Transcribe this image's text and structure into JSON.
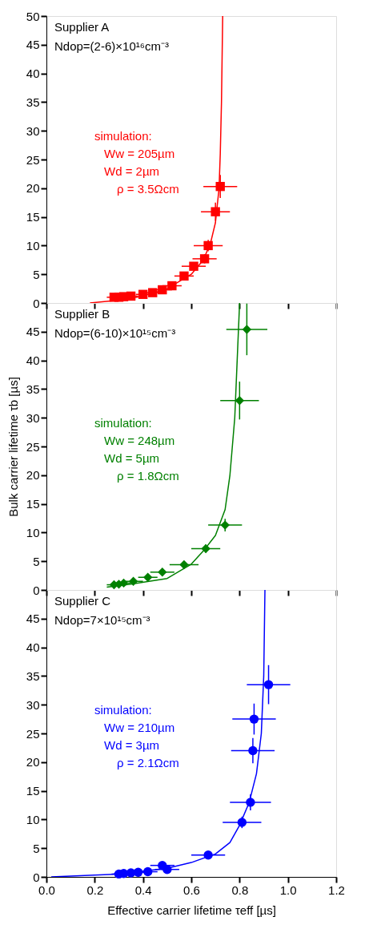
{
  "chart_data": [
    {
      "type": "scatter",
      "xlim": [
        0,
        1.2
      ],
      "xticks": [
        0,
        0.2,
        0.4,
        0.6,
        0.8,
        1,
        1.2
      ],
      "ylim": [
        0,
        50
      ],
      "yticks": [
        0,
        5,
        10,
        15,
        20,
        25,
        30,
        35,
        40,
        45,
        50
      ],
      "tick_labels": "y",
      "grid": false,
      "annotations": [
        "Supplier A",
        "Ndop=(2-6)×10¹⁶cm⁻³",
        "simulation:",
        "Ww = 205µm",
        "Wd = 2µm",
        "ρ = 3.5Ωcm"
      ],
      "series": [
        {
          "marker": "square",
          "color": "#ff0000",
          "x": [
            0.72,
            0.7,
            0.67,
            0.655,
            0.61,
            0.57,
            0.52,
            0.48,
            0.44,
            0.4,
            0.35,
            0.32,
            0.3,
            0.28
          ],
          "values": [
            20.3,
            15.9,
            10.0,
            7.7,
            6.4,
            4.7,
            3.0,
            2.3,
            1.8,
            1.5,
            1.2,
            1.1,
            1.0,
            1.0
          ],
          "errors": [
            2.0,
            1.6,
            1.0,
            0.8,
            0.7,
            0.5,
            0.3,
            0.2,
            0.2,
            0.2,
            0.1,
            0.1,
            0.1,
            0.1
          ],
          "xerrors": [
            0.07,
            0.06,
            0.06,
            0.05,
            0.05,
            0.04,
            0.04,
            0.04,
            0.03,
            0.03,
            0.03,
            0.03,
            0.03,
            0.03
          ]
        },
        {
          "type": "line",
          "color": "#ff0000",
          "x": [
            0.18,
            0.3,
            0.4,
            0.5,
            0.6,
            0.65,
            0.68,
            0.7,
            0.715,
            0.72,
            0.725,
            0.73
          ],
          "values": [
            0,
            0.5,
            1.2,
            2.5,
            5,
            7.5,
            10.5,
            14,
            20,
            26,
            35,
            50
          ]
        }
      ]
    },
    {
      "type": "scatter",
      "xlim": [
        0,
        1.2
      ],
      "xticks": [
        0,
        0.2,
        0.4,
        0.6,
        0.8,
        1,
        1.2
      ],
      "ylim": [
        0,
        50
      ],
      "yticks": [
        0,
        5,
        10,
        15,
        20,
        25,
        30,
        35,
        40,
        45
      ],
      "tick_labels": "y",
      "grid": false,
      "ylabel": "Bulk carrier lifetime τb [µs]",
      "annotations": [
        "Supplier B",
        "Ndop=(6-10)×10¹⁵cm⁻³",
        "simulation:",
        "Ww = 248µm",
        "Wd = 5µm",
        "ρ = 1.8Ωcm"
      ],
      "series": [
        {
          "marker": "diamond",
          "color": "#008000",
          "x": [
            0.83,
            0.8,
            0.74,
            0.66,
            0.57,
            0.48,
            0.42,
            0.36,
            0.32,
            0.3,
            0.28
          ],
          "values": [
            45.4,
            33.0,
            11.3,
            7.2,
            4.4,
            3.1,
            2.2,
            1.5,
            1.2,
            1.0,
            0.9
          ],
          "errors": [
            4.5,
            3.3,
            1.1,
            0.7,
            0.4,
            0.3,
            0.2,
            0.2,
            0.1,
            0.1,
            0.1
          ],
          "xerrors": [
            0.085,
            0.08,
            0.07,
            0.06,
            0.06,
            0.05,
            0.04,
            0.04,
            0.03,
            0.03,
            0.03
          ]
        },
        {
          "type": "line",
          "color": "#008000",
          "x": [
            0.25,
            0.35,
            0.5,
            0.6,
            0.65,
            0.7,
            0.74,
            0.76,
            0.78,
            0.79,
            0.8
          ],
          "values": [
            0.5,
            1.0,
            2.0,
            4.5,
            6.8,
            9.5,
            14,
            20,
            30,
            40,
            50
          ]
        }
      ]
    },
    {
      "type": "scatter",
      "xlim": [
        0,
        1.2
      ],
      "xticks": [
        {
          "value": 0,
          "label": "0.0"
        },
        0.2,
        0.4,
        0.6,
        0.8,
        {
          "value": 1,
          "label": "1.0"
        },
        1.2
      ],
      "ylim": [
        0,
        50
      ],
      "yticks": [
        0,
        5,
        10,
        15,
        20,
        25,
        30,
        35,
        40,
        45
      ],
      "grid": false,
      "xlabel": "Effective carrier lifetime τeff [µs]",
      "annotations": [
        "Supplier C",
        "Ndop=7×10¹⁵cm⁻³",
        "simulation:",
        "Ww = 210µm",
        "Wd = 3µm",
        "ρ = 2.1Ωcm"
      ],
      "series": [
        {
          "marker": "circle",
          "color": "#0000ff",
          "x": [
            0.92,
            0.86,
            0.855,
            0.845,
            0.81,
            0.67,
            0.5,
            0.48,
            0.42,
            0.38,
            0.35,
            0.32,
            0.3
          ],
          "values": [
            33.5,
            27.5,
            22.0,
            13.0,
            9.5,
            3.8,
            1.3,
            2.0,
            0.9,
            0.8,
            0.7,
            0.6,
            0.5
          ],
          "errors": [
            3.4,
            2.7,
            2.2,
            1.4,
            1.0,
            0.4,
            0.1,
            0.2,
            0.1,
            0.1,
            0.1,
            0.1,
            0.1
          ],
          "xerrors": [
            0.09,
            0.09,
            0.09,
            0.085,
            0.08,
            0.07,
            0.05,
            0.05,
            0.04,
            0.04,
            0.04,
            0.04,
            0.03
          ]
        },
        {
          "type": "line",
          "color": "#0000ff",
          "x": [
            0.02,
            0.3,
            0.5,
            0.6,
            0.7,
            0.76,
            0.8,
            0.84,
            0.87,
            0.89,
            0.9,
            0.905
          ],
          "values": [
            0,
            0.5,
            1.5,
            2.5,
            4,
            6,
            9,
            13,
            18,
            25,
            35,
            50
          ]
        }
      ]
    }
  ]
}
